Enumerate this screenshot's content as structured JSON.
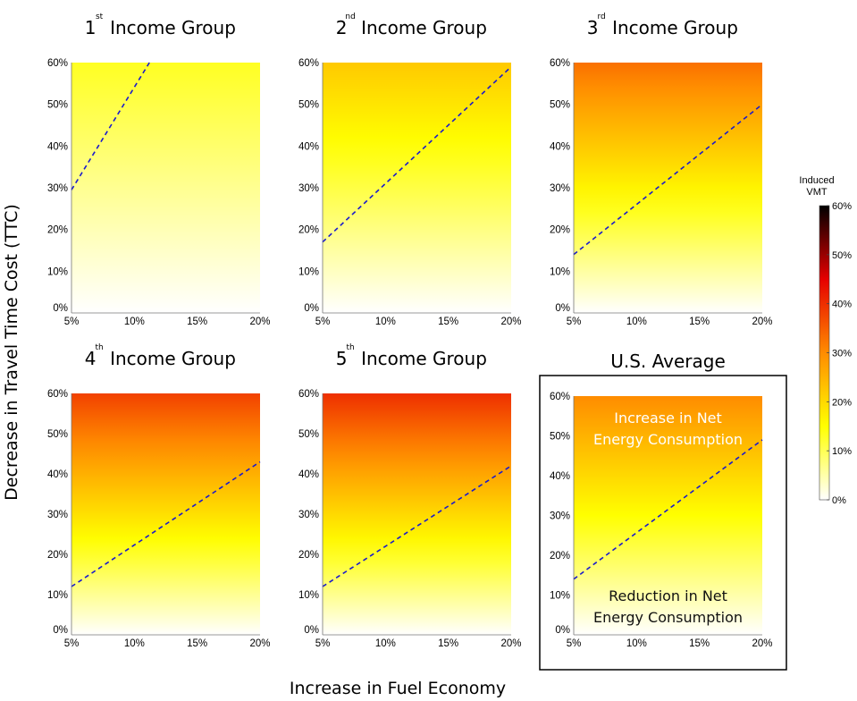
{
  "figure": {
    "xlabel": "Increase in Fuel Economy",
    "ylabel": "Decrease in Travel Time Cost (TTC)"
  },
  "colorbar": {
    "title_line1": "Induced",
    "title_line2": "VMT",
    "ticks": [
      "0%",
      "10%",
      "20%",
      "30%",
      "40%",
      "50%",
      "60%"
    ],
    "range": [
      0,
      60
    ],
    "colormap": "white-yellow-orange-red-black (hot reversed)"
  },
  "chart_data": [
    {
      "type": "heatmap",
      "title_num": "1",
      "title_sup": "st",
      "title_text": "Income Group",
      "x_ticks": [
        "5%",
        "10%",
        "15%",
        "20%"
      ],
      "y_ticks": [
        "0%",
        "10%",
        "20%",
        "30%",
        "40%",
        "50%",
        "60%"
      ],
      "xlim": [
        5,
        20
      ],
      "ylim": [
        0,
        60
      ],
      "vmt_bottom": 0,
      "vmt_top": 13,
      "breakeven_line": {
        "x": [
          5,
          11.2
        ],
        "y": [
          29.5,
          60
        ],
        "style": "dashed",
        "color": "#1a1acc"
      }
    },
    {
      "type": "heatmap",
      "title_num": "2",
      "title_sup": "nd",
      "title_text": "Income Group",
      "x_ticks": [
        "5%",
        "10%",
        "15%",
        "20%"
      ],
      "y_ticks": [
        "0%",
        "10%",
        "20%",
        "30%",
        "40%",
        "50%",
        "60%"
      ],
      "xlim": [
        5,
        20
      ],
      "ylim": [
        0,
        60
      ],
      "vmt_bottom": 0,
      "vmt_top": 22,
      "breakeven_line": {
        "x": [
          5,
          20
        ],
        "y": [
          17,
          59
        ],
        "style": "dashed",
        "color": "#1a1acc"
      }
    },
    {
      "type": "heatmap",
      "title_num": "3",
      "title_sup": "rd",
      "title_text": "Income Group",
      "x_ticks": [
        "5%",
        "10%",
        "15%",
        "20%"
      ],
      "y_ticks": [
        "0%",
        "10%",
        "20%",
        "30%",
        "40%",
        "50%",
        "60%"
      ],
      "xlim": [
        5,
        20
      ],
      "ylim": [
        0,
        60
      ],
      "vmt_bottom": 0,
      "vmt_top": 33,
      "breakeven_line": {
        "x": [
          5,
          20
        ],
        "y": [
          14,
          50
        ],
        "style": "dashed",
        "color": "#1a1acc"
      }
    },
    {
      "type": "heatmap",
      "title_num": "4",
      "title_sup": "th",
      "title_text": "Income Group",
      "x_ticks": [
        "5%",
        "10%",
        "15%",
        "20%"
      ],
      "y_ticks": [
        "0%",
        "10%",
        "20%",
        "30%",
        "40%",
        "50%",
        "60%"
      ],
      "xlim": [
        5,
        20
      ],
      "ylim": [
        0,
        60
      ],
      "vmt_bottom": 0,
      "vmt_top": 38,
      "breakeven_line": {
        "x": [
          5,
          20
        ],
        "y": [
          12,
          43
        ],
        "style": "dashed",
        "color": "#1a1acc"
      }
    },
    {
      "type": "heatmap",
      "title_num": "5",
      "title_sup": "th",
      "title_text": "Income Group",
      "x_ticks": [
        "5%",
        "10%",
        "15%",
        "20%"
      ],
      "y_ticks": [
        "0%",
        "10%",
        "20%",
        "30%",
        "40%",
        "50%",
        "60%"
      ],
      "xlim": [
        5,
        20
      ],
      "ylim": [
        0,
        60
      ],
      "vmt_bottom": 0,
      "vmt_top": 40,
      "breakeven_line": {
        "x": [
          5,
          20
        ],
        "y": [
          12,
          42
        ],
        "style": "dashed",
        "color": "#1a1acc"
      }
    },
    {
      "type": "heatmap",
      "title_num": "",
      "title_sup": "",
      "title_text": "U.S. Average",
      "x_ticks": [
        "5%",
        "10%",
        "15%",
        "20%"
      ],
      "y_ticks": [
        "0%",
        "10%",
        "20%",
        "30%",
        "40%",
        "50%",
        "60%"
      ],
      "xlim": [
        5,
        20
      ],
      "ylim": [
        0,
        60
      ],
      "vmt_bottom": 0,
      "vmt_top": 30,
      "breakeven_line": {
        "x": [
          5,
          20
        ],
        "y": [
          14,
          49
        ],
        "style": "dashed",
        "color": "#1a1acc"
      },
      "annotations": {
        "upper_line1": "Increase in Net",
        "upper_line2": "Energy Consumption",
        "lower_line1": "Reduction in Net",
        "lower_line2": "Energy Consumption"
      }
    }
  ]
}
